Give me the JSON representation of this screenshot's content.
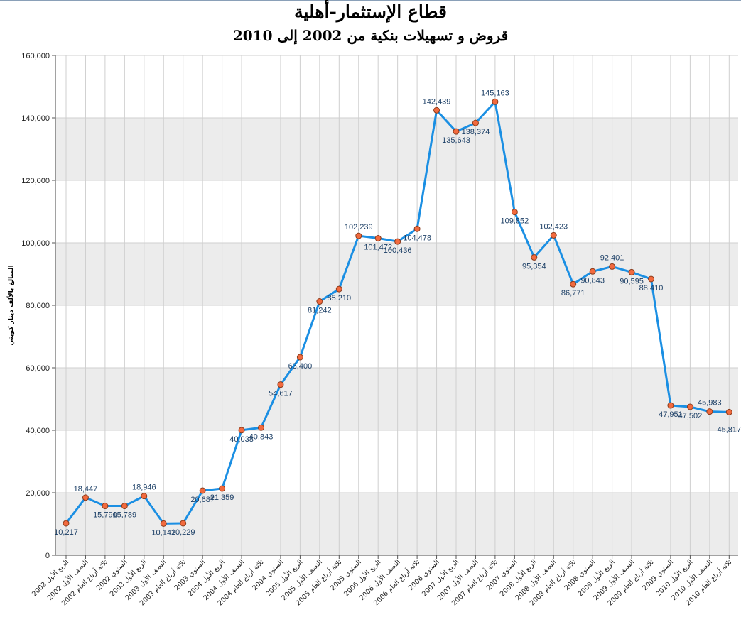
{
  "chart_data": {
    "type": "line",
    "title": "قطاع الإستثمار-أهلية",
    "subtitle": "قروض و تسهيلات بنكية من 2002 إلى 2010",
    "ylabel": "المبالغ بالألف دينار كويتي",
    "xlabel": "",
    "ylim": [
      0,
      160000
    ],
    "yticks": [
      "0",
      "20,000",
      "40,000",
      "60,000",
      "80,000",
      "100,000",
      "120,000",
      "140,000",
      "160,000"
    ],
    "grid": true,
    "line_color": "#1b8fe3",
    "marker_color": "#f26a3e",
    "band_color": "#ececec",
    "categories": [
      "الربع الأول 2002",
      "النصف الأول 2002",
      "ثلاثة أرباع العام 2002",
      "السنوي 2002",
      "الربع الأول 2003",
      "النصف الأول 2003",
      "ثلاثة أرباع العام 2003",
      "السنوي 2003",
      "الربع الأول 2004",
      "النصف الأول 2004",
      "ثلاثة أرباع العام 2004",
      "السنوي 2004",
      "الربع الأول 2005",
      "النصف الأول 2005",
      "ثلاثة أرباع العام 2005",
      "السنوي 2005",
      "الربع الأول 2006",
      "النصف الأول 2006",
      "ثلاثة أرباع العام 2006",
      "السنوي 2006",
      "الربع الأول 2007",
      "النصف الأول 2007",
      "ثلاثة أرباع العام 2007",
      "السنوي 2007",
      "الربع الأول 2008",
      "النصف الأول 2008",
      "ثلاثة أرباع العام 2008",
      "السنوي 2008",
      "الربع الأول 2009",
      "النصف الأول 2009",
      "ثلاثة أرباع العام 2009",
      "السنوي 2009",
      "الربع الأول 2010",
      "النصف الأول 2010",
      "ثلاثة أرباع العام 2010"
    ],
    "values": [
      10217,
      18447,
      15790,
      15789,
      18946,
      10142,
      10229,
      20687,
      21359,
      40038,
      40843,
      54617,
      63400,
      81242,
      85210,
      102239,
      101472,
      100436,
      104478,
      142439,
      135643,
      138374,
      145163,
      109852,
      95354,
      102423,
      86771,
      90843,
      92401,
      90595,
      88410,
      47951,
      47502,
      45983,
      45817
    ],
    "value_labels": [
      "10,217",
      "18,447",
      "15,790",
      "15,789",
      "18,946",
      "10,142",
      "10,229",
      "20,687",
      "21,359",
      "40,038",
      "40,843",
      "54,617",
      "63,400",
      "81,242",
      "85,210",
      "102,239",
      "101,472",
      "100,436",
      "104,478",
      "142,439",
      "135,643",
      "138,374",
      "145,163",
      "109,852",
      "95,354",
      "102,423",
      "86,771",
      "90,843",
      "92,401",
      "90,595",
      "88,410",
      "47,951",
      "47,502",
      "45,983",
      "45,817"
    ]
  }
}
